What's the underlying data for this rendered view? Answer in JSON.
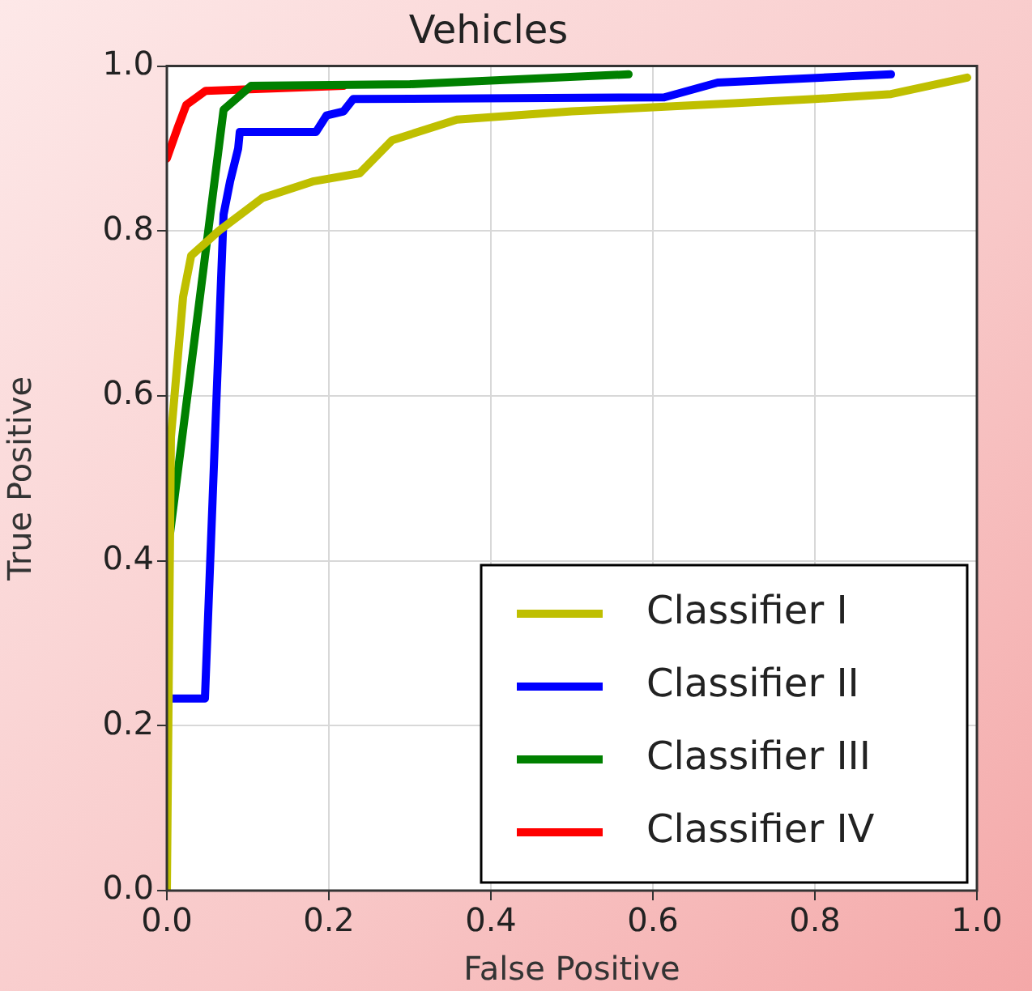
{
  "chart_data": {
    "type": "line",
    "title": "Vehicles",
    "xlabel": "False Positive",
    "ylabel": "True Positive",
    "xlim": [
      0,
      1
    ],
    "ylim": [
      0,
      1
    ],
    "xticks": [
      {
        "value": 0,
        "label": "0.0"
      },
      {
        "value": 0.2,
        "label": "0.2"
      },
      {
        "value": 0.4,
        "label": "0.4"
      },
      {
        "value": 0.6,
        "label": "0.6"
      },
      {
        "value": 0.8,
        "label": "0.8"
      },
      {
        "value": 1,
        "label": "1.0"
      }
    ],
    "yticks": [
      {
        "value": 0,
        "label": "0.0"
      },
      {
        "value": 0.2,
        "label": "0.2"
      },
      {
        "value": 0.4,
        "label": "0.4"
      },
      {
        "value": 0.6,
        "label": "0.6"
      },
      {
        "value": 0.8,
        "label": "0.8"
      },
      {
        "value": 1,
        "label": "1.0"
      }
    ],
    "grid": true,
    "legend": "bottom right",
    "marker": "none",
    "line_style": "solid",
    "series": [
      {
        "name": "Classifier I",
        "color": "#bfbf00",
        "x": [
          0,
          0.005,
          0.02,
          0.03,
          0.064,
          0.118,
          0.18,
          0.238,
          0.278,
          0.358,
          0.5,
          0.6,
          0.7,
          0.8,
          0.894,
          0.988
        ],
        "values": [
          0,
          0.55,
          0.72,
          0.77,
          0.8,
          0.84,
          0.86,
          0.87,
          0.91,
          0.935,
          0.945,
          0.95,
          0.955,
          0.96,
          0.966,
          0.986
        ]
      },
      {
        "name": "Classifier II",
        "color": "#0000ff",
        "x": [
          0,
          0.047,
          0.07,
          0.078,
          0.088,
          0.09,
          0.184,
          0.197,
          0.218,
          0.23,
          0.614,
          0.68,
          0.894
        ],
        "values": [
          0.233,
          0.233,
          0.82,
          0.86,
          0.9,
          0.92,
          0.92,
          0.94,
          0.945,
          0.96,
          0.962,
          0.98,
          0.99
        ]
      },
      {
        "name": "Classifier III",
        "color": "#008000",
        "x": [
          0.004,
          0.07,
          0.104,
          0.3,
          0.57
        ],
        "values": [
          0.434,
          0.947,
          0.976,
          0.978,
          0.99
        ]
      },
      {
        "name": "Classifier IV",
        "color": "#ff0000",
        "x": [
          0,
          0.014,
          0.024,
          0.048,
          0.218
        ],
        "values": [
          0.888,
          0.927,
          0.953,
          0.97,
          0.976
        ]
      }
    ]
  }
}
